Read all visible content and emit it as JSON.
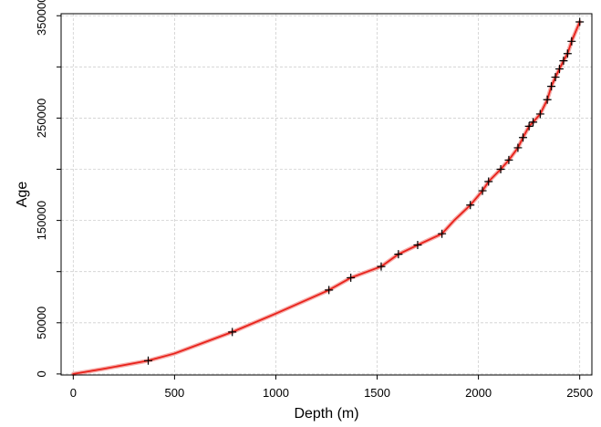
{
  "chart_data": {
    "type": "line",
    "xlabel": "Depth (m)",
    "ylabel": "Age",
    "xlim": [
      -60,
      2560
    ],
    "ylim": [
      -1000,
      352000
    ],
    "x_ticks": [
      0,
      500,
      1000,
      1500,
      2000,
      2500
    ],
    "x_tick_labels": [
      "0",
      "500",
      "1000",
      "1500",
      "2000",
      "2500"
    ],
    "y_ticks": [
      0,
      50000,
      100000,
      150000,
      200000,
      250000,
      300000,
      350000
    ],
    "y_tick_labels": [
      "0",
      "50000",
      "",
      "150000",
      "",
      "250000",
      "",
      "350000"
    ],
    "grid": true,
    "colors": {
      "line": "#e8221b",
      "markers": "#000000",
      "grid": "#cfcfcf"
    },
    "series": [
      {
        "marker": "plus",
        "x": [
          370,
          785,
          1262,
          1370,
          1520,
          1605,
          1700,
          1820,
          1960,
          2020,
          2050,
          2110,
          2150,
          2195,
          2220,
          2250,
          2270,
          2305,
          2340,
          2360,
          2380,
          2400,
          2420,
          2440,
          2460,
          2500
        ],
        "y": [
          13000,
          41000,
          82000,
          94000,
          105000,
          117000,
          126000,
          137000,
          165000,
          179000,
          188000,
          200000,
          209000,
          221000,
          231000,
          242000,
          246000,
          254000,
          268000,
          281000,
          290000,
          298000,
          306000,
          313000,
          325000,
          344000
        ]
      },
      {
        "marker": "line",
        "x": [
          0,
          150,
          370,
          500,
          785,
          1000,
          1262,
          1370,
          1520,
          1605,
          1700,
          1820,
          1880,
          1960,
          2020,
          2050,
          2110,
          2150,
          2195,
          2220,
          2250,
          2270,
          2305,
          2340,
          2360,
          2380,
          2400,
          2420,
          2440,
          2460,
          2500
        ],
        "y": [
          0,
          5000,
          13000,
          20000,
          41000,
          59000,
          82000,
          94000,
          105000,
          117000,
          126000,
          137000,
          150000,
          165000,
          179000,
          188000,
          200000,
          209000,
          221000,
          231000,
          242000,
          246000,
          254000,
          268000,
          281000,
          290000,
          298000,
          306000,
          313000,
          325000,
          344000
        ]
      }
    ]
  }
}
